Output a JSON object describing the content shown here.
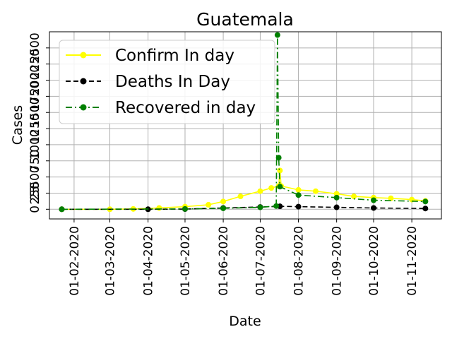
{
  "chart_data": {
    "type": "line",
    "title": "Guatemala",
    "xlabel": "Date",
    "ylabel": "Cases",
    "x_ticks": [
      "01-02-2020",
      "01-03-2020",
      "01-04-2020",
      "01-05-2020",
      "01-06-2020",
      "01-07-2020",
      "01-08-2020",
      "01-09-2020",
      "01-10-2020",
      "01-11-2020"
    ],
    "y_ticks": [
      "25",
      "500",
      "750",
      "1000",
      "1250",
      "1500",
      "1750",
      "2000",
      "2250",
      "2500"
    ],
    "y_ticks_overlapping": [
      "250",
      "0"
    ],
    "ylim": [
      -150,
      2750
    ],
    "grid": true,
    "legend_position": "upper-left",
    "series": [
      {
        "name": "Confirm In day",
        "color": "#ffff00",
        "linestyle": "solid",
        "marker": "circle",
        "points": [
          [
            "2020-01-22",
            0
          ],
          [
            "2020-03-01",
            0
          ],
          [
            "2020-03-20",
            5
          ],
          [
            "2020-04-10",
            20
          ],
          [
            "2020-05-01",
            40
          ],
          [
            "2020-05-20",
            70
          ],
          [
            "2020-06-01",
            120
          ],
          [
            "2020-06-15",
            200
          ],
          [
            "2020-07-01",
            280
          ],
          [
            "2020-07-10",
            330
          ],
          [
            "2020-07-16",
            360
          ],
          [
            "2020-07-17",
            600
          ],
          [
            "2020-07-18",
            360
          ],
          [
            "2020-08-01",
            300
          ],
          [
            "2020-08-15",
            280
          ],
          [
            "2020-09-01",
            240
          ],
          [
            "2020-09-15",
            200
          ],
          [
            "2020-10-01",
            180
          ],
          [
            "2020-10-15",
            170
          ],
          [
            "2020-11-01",
            150
          ],
          [
            "2020-11-12",
            130
          ]
        ]
      },
      {
        "name": "Deaths In Day",
        "color": "#000000",
        "linestyle": "dashed",
        "marker": "circle",
        "points": [
          [
            "2020-01-22",
            0
          ],
          [
            "2020-04-01",
            0
          ],
          [
            "2020-05-01",
            3
          ],
          [
            "2020-06-01",
            20
          ],
          [
            "2020-07-01",
            35
          ],
          [
            "2020-07-17",
            45
          ],
          [
            "2020-08-01",
            40
          ],
          [
            "2020-09-01",
            30
          ],
          [
            "2020-10-01",
            20
          ],
          [
            "2020-11-12",
            12
          ]
        ]
      },
      {
        "name": "Recovered in day",
        "color": "#008000",
        "linestyle": "dashdot",
        "marker": "circle",
        "points": [
          [
            "2020-01-22",
            0
          ],
          [
            "2020-05-01",
            5
          ],
          [
            "2020-06-01",
            15
          ],
          [
            "2020-07-01",
            30
          ],
          [
            "2020-07-14",
            50
          ],
          [
            "2020-07-15",
            2700
          ],
          [
            "2020-07-16",
            800
          ],
          [
            "2020-07-17",
            350
          ],
          [
            "2020-08-01",
            220
          ],
          [
            "2020-09-01",
            180
          ],
          [
            "2020-10-01",
            140
          ],
          [
            "2020-11-12",
            120
          ]
        ]
      }
    ]
  }
}
